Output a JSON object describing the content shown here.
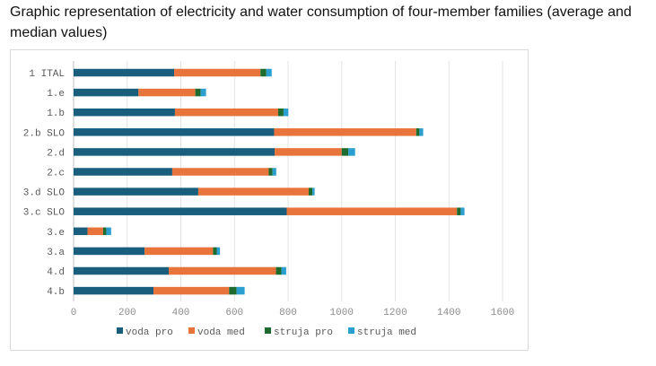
{
  "heading": "Graphic representation of electricity and water consumption of four-member families (average and median values)",
  "chart_data": {
    "type": "bar",
    "orientation": "horizontal",
    "stacked": true,
    "categories": [
      "1 ITAL",
      "1.e",
      "1.b",
      "2.b SLO",
      "2.d",
      "2.c",
      "3.d SLO",
      "3.c SLO",
      "3.e",
      "3.a",
      "4.d",
      "4.b"
    ],
    "series": [
      {
        "name": "voda pro",
        "color": "#1a5e7e",
        "values": [
          375,
          242,
          378,
          748,
          750,
          368,
          465,
          795,
          52,
          265,
          355,
          298
        ]
      },
      {
        "name": "voda med",
        "color": "#e8743b",
        "values": [
          322,
          212,
          385,
          530,
          250,
          360,
          412,
          635,
          58,
          255,
          400,
          282
        ]
      },
      {
        "name": "struja pro",
        "color": "#1d6b2f",
        "values": [
          22,
          20,
          20,
          12,
          25,
          14,
          14,
          14,
          12,
          14,
          20,
          28
        ]
      },
      {
        "name": "struja med",
        "color": "#2a9fd0",
        "values": [
          20,
          20,
          18,
          14,
          25,
          14,
          8,
          14,
          18,
          12,
          18,
          30
        ]
      }
    ],
    "xlim": [
      0,
      1600
    ],
    "xticks": [
      0,
      200,
      400,
      600,
      800,
      1000,
      1200,
      1400,
      1600
    ],
    "grid": "vertical",
    "legend": "bottom"
  }
}
